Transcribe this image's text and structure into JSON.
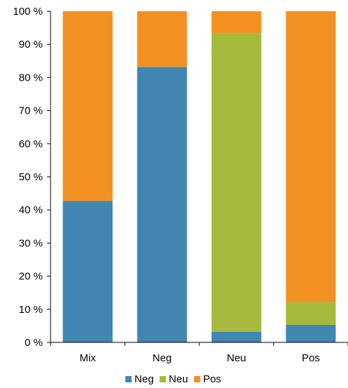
{
  "chart_data": {
    "type": "bar",
    "stacked": true,
    "categories": [
      "Mix",
      "Neg",
      "Neu",
      "Pos"
    ],
    "series": [
      {
        "name": "Neg",
        "color": "#4185B3",
        "values": [
          42.7,
          83.2,
          3.2,
          5.3
        ]
      },
      {
        "name": "Neu",
        "color": "#A5B93C",
        "values": [
          0.0,
          0.0,
          90.1,
          6.9
        ]
      },
      {
        "name": "Pos",
        "color": "#F29121",
        "values": [
          57.3,
          16.8,
          6.7,
          87.8
        ]
      }
    ],
    "ylim": [
      0,
      100
    ],
    "yticks": [
      0,
      10,
      20,
      30,
      40,
      50,
      60,
      70,
      80,
      90,
      100
    ],
    "ytick_labels": [
      "0 %",
      "10 %",
      "20 %",
      "30 %",
      "40 %",
      "50 %",
      "60 %",
      "70 %",
      "80 %",
      "90 %",
      "100 %"
    ],
    "title": "",
    "xlabel": "",
    "ylabel": "",
    "grid": false,
    "legend": {
      "position": "bottom",
      "entries": [
        "Neg",
        "Neu",
        "Pos"
      ]
    }
  }
}
